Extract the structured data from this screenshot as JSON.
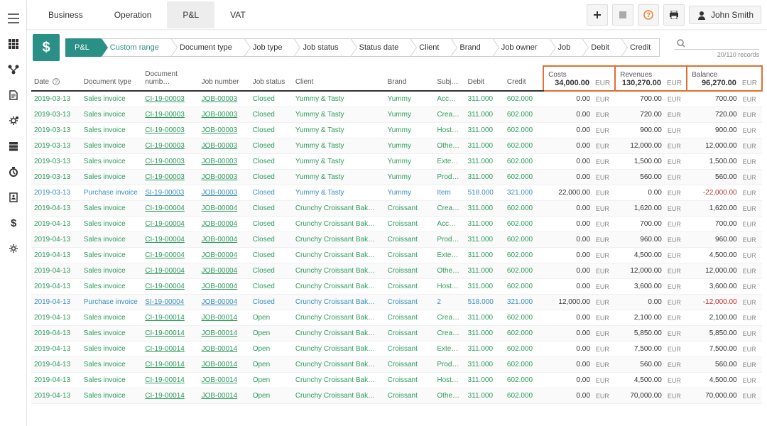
{
  "user": {
    "name": "John Smith"
  },
  "topTabs": [
    {
      "label": "Business",
      "active": false
    },
    {
      "label": "Operation",
      "active": false
    },
    {
      "label": "P&L",
      "active": true
    },
    {
      "label": "VAT",
      "active": false
    }
  ],
  "filterBadge": "$",
  "filterChips": [
    {
      "label": "P&L",
      "style": "active"
    },
    {
      "label": "Custom range",
      "style": "link"
    },
    {
      "label": "Document type"
    },
    {
      "label": "Job type"
    },
    {
      "label": "Job status"
    },
    {
      "label": "Status date"
    },
    {
      "label": "Client"
    },
    {
      "label": "Brand"
    },
    {
      "label": "Job owner"
    },
    {
      "label": "Job"
    },
    {
      "label": "Debit"
    },
    {
      "label": "Credit"
    }
  ],
  "searchMeta": "20/110 records",
  "summary": {
    "costs": {
      "label": "Costs",
      "value": "34,000.00",
      "currency": "EUR",
      "highlight": "#e07030"
    },
    "revenues": {
      "label": "Revenues",
      "value": "130,270.00",
      "currency": "EUR",
      "highlight": "#e07030"
    },
    "balance": {
      "label": "Balance",
      "value": "96,270.00",
      "currency": "EUR",
      "highlight": "#e07030"
    }
  },
  "columns": [
    "Date",
    "Document type",
    "Document numb…",
    "Job number",
    "Job status",
    "Client",
    "Brand",
    "Subj…",
    "Debit",
    "Credit"
  ],
  "currency": "EUR",
  "rows": [
    {
      "type": "sales",
      "date": "2019-03-13",
      "docType": "Sales invoice",
      "docNum": "CI-19-00003",
      "jobNum": "JOB-00003",
      "jobStatus": "Closed",
      "client": "Yummy & Tasty",
      "brand": "Yummy",
      "subj": "Acc…",
      "debit": "311.000",
      "credit": "602.000",
      "cost": "0.00",
      "rev": "700.00",
      "bal": "700.00"
    },
    {
      "type": "sales",
      "date": "2019-03-13",
      "docType": "Sales invoice",
      "docNum": "CI-19-00003",
      "jobNum": "JOB-00003",
      "jobStatus": "Closed",
      "client": "Yummy & Tasty",
      "brand": "Yummy",
      "subj": "Crea…",
      "debit": "311.000",
      "credit": "602.000",
      "cost": "0.00",
      "rev": "720.00",
      "bal": "720.00"
    },
    {
      "type": "sales",
      "date": "2019-03-13",
      "docType": "Sales invoice",
      "docNum": "CI-19-00003",
      "jobNum": "JOB-00003",
      "jobStatus": "Closed",
      "client": "Yummy & Tasty",
      "brand": "Yummy",
      "subj": "Host…",
      "debit": "311.000",
      "credit": "602.000",
      "cost": "0.00",
      "rev": "900.00",
      "bal": "900.00"
    },
    {
      "type": "sales",
      "date": "2019-03-13",
      "docType": "Sales invoice",
      "docNum": "CI-19-00003",
      "jobNum": "JOB-00003",
      "jobStatus": "Closed",
      "client": "Yummy & Tasty",
      "brand": "Yummy",
      "subj": "Othe…",
      "debit": "311.000",
      "credit": "602.000",
      "cost": "0.00",
      "rev": "12,000.00",
      "bal": "12,000.00"
    },
    {
      "type": "sales",
      "date": "2019-03-13",
      "docType": "Sales invoice",
      "docNum": "CI-19-00003",
      "jobNum": "JOB-00003",
      "jobStatus": "Closed",
      "client": "Yummy & Tasty",
      "brand": "Yummy",
      "subj": "Exte…",
      "debit": "311.000",
      "credit": "602.000",
      "cost": "0.00",
      "rev": "1,500.00",
      "bal": "1,500.00"
    },
    {
      "type": "sales",
      "date": "2019-03-13",
      "docType": "Sales invoice",
      "docNum": "CI-19-00003",
      "jobNum": "JOB-00003",
      "jobStatus": "Closed",
      "client": "Yummy & Tasty",
      "brand": "Yummy",
      "subj": "Prod…",
      "debit": "311.000",
      "credit": "602.000",
      "cost": "0.00",
      "rev": "560.00",
      "bal": "560.00"
    },
    {
      "type": "purchase",
      "date": "2019-03-13",
      "docType": "Purchase invoice",
      "docNum": "SI-19-00003",
      "jobNum": "JOB-00003",
      "jobStatus": "Closed",
      "client": "Yummy & Tasty",
      "brand": "Yummy",
      "subj": "Item",
      "debit": "518.000",
      "credit": "321.000",
      "cost": "22,000.00",
      "rev": "0.00",
      "bal": "-22,000.00",
      "neg": true
    },
    {
      "type": "sales",
      "date": "2019-04-13",
      "docType": "Sales invoice",
      "docNum": "CI-19-00004",
      "jobNum": "JOB-00004",
      "jobStatus": "Closed",
      "client": "Crunchy Croissant Bak…",
      "brand": "Croissant",
      "subj": "Crea…",
      "debit": "311.000",
      "credit": "602.000",
      "cost": "0.00",
      "rev": "1,620.00",
      "bal": "1,620.00"
    },
    {
      "type": "sales",
      "date": "2019-04-13",
      "docType": "Sales invoice",
      "docNum": "CI-19-00004",
      "jobNum": "JOB-00004",
      "jobStatus": "Closed",
      "client": "Crunchy Croissant Bak…",
      "brand": "Croissant",
      "subj": "Acc…",
      "debit": "311.000",
      "credit": "602.000",
      "cost": "0.00",
      "rev": "700.00",
      "bal": "700.00"
    },
    {
      "type": "sales",
      "date": "2019-04-13",
      "docType": "Sales invoice",
      "docNum": "CI-19-00004",
      "jobNum": "JOB-00004",
      "jobStatus": "Closed",
      "client": "Crunchy Croissant Bak…",
      "brand": "Croissant",
      "subj": "Prod…",
      "debit": "311.000",
      "credit": "602.000",
      "cost": "0.00",
      "rev": "960.00",
      "bal": "960.00"
    },
    {
      "type": "sales",
      "date": "2019-04-13",
      "docType": "Sales invoice",
      "docNum": "CI-19-00004",
      "jobNum": "JOB-00004",
      "jobStatus": "Closed",
      "client": "Crunchy Croissant Bak…",
      "brand": "Croissant",
      "subj": "Exte…",
      "debit": "311.000",
      "credit": "602.000",
      "cost": "0.00",
      "rev": "4,500.00",
      "bal": "4,500.00"
    },
    {
      "type": "sales",
      "date": "2019-04-13",
      "docType": "Sales invoice",
      "docNum": "CI-19-00004",
      "jobNum": "JOB-00004",
      "jobStatus": "Closed",
      "client": "Crunchy Croissant Bak…",
      "brand": "Croissant",
      "subj": "Othe…",
      "debit": "311.000",
      "credit": "602.000",
      "cost": "0.00",
      "rev": "12,000.00",
      "bal": "12,000.00"
    },
    {
      "type": "sales",
      "date": "2019-04-13",
      "docType": "Sales invoice",
      "docNum": "CI-19-00004",
      "jobNum": "JOB-00004",
      "jobStatus": "Closed",
      "client": "Crunchy Croissant Bak…",
      "brand": "Croissant",
      "subj": "Host…",
      "debit": "311.000",
      "credit": "602.000",
      "cost": "0.00",
      "rev": "3,600.00",
      "bal": "3,600.00"
    },
    {
      "type": "purchase",
      "date": "2019-04-13",
      "docType": "Purchase invoice",
      "docNum": "SI-19-00004",
      "jobNum": "JOB-00004",
      "jobStatus": "Closed",
      "client": "Crunchy Croissant Bak…",
      "brand": "Croissant",
      "subj": "2",
      "debit": "518.000",
      "credit": "321.000",
      "cost": "12,000.00",
      "rev": "0.00",
      "bal": "-12,000.00",
      "neg": true
    },
    {
      "type": "sales",
      "date": "2019-04-13",
      "docType": "Sales invoice",
      "docNum": "CI-19-00014",
      "jobNum": "JOB-00014",
      "jobStatus": "Open",
      "client": "Crunchy Croissant Bak…",
      "brand": "Croissant",
      "subj": "Crea…",
      "debit": "311.000",
      "credit": "602.000",
      "cost": "0.00",
      "rev": "2,100.00",
      "bal": "2,100.00"
    },
    {
      "type": "sales",
      "date": "2019-04-13",
      "docType": "Sales invoice",
      "docNum": "CI-19-00014",
      "jobNum": "JOB-00014",
      "jobStatus": "Open",
      "client": "Crunchy Croissant Bak…",
      "brand": "Croissant",
      "subj": "Crea…",
      "debit": "311.000",
      "credit": "602.000",
      "cost": "0.00",
      "rev": "5,850.00",
      "bal": "5,850.00"
    },
    {
      "type": "sales",
      "date": "2019-04-13",
      "docType": "Sales invoice",
      "docNum": "CI-19-00014",
      "jobNum": "JOB-00014",
      "jobStatus": "Open",
      "client": "Crunchy Croissant Bak…",
      "brand": "Croissant",
      "subj": "Exte…",
      "debit": "311.000",
      "credit": "602.000",
      "cost": "0.00",
      "rev": "7,500.00",
      "bal": "7,500.00"
    },
    {
      "type": "sales",
      "date": "2019-04-13",
      "docType": "Sales invoice",
      "docNum": "CI-19-00014",
      "jobNum": "JOB-00014",
      "jobStatus": "Open",
      "client": "Crunchy Croissant Bak…",
      "brand": "Croissant",
      "subj": "Prod…",
      "debit": "311.000",
      "credit": "602.000",
      "cost": "0.00",
      "rev": "560.00",
      "bal": "560.00"
    },
    {
      "type": "sales",
      "date": "2019-04-13",
      "docType": "Sales invoice",
      "docNum": "CI-19-00014",
      "jobNum": "JOB-00014",
      "jobStatus": "Open",
      "client": "Crunchy Croissant Bak…",
      "brand": "Croissant",
      "subj": "Host…",
      "debit": "311.000",
      "credit": "602.000",
      "cost": "0.00",
      "rev": "4,500.00",
      "bal": "4,500.00"
    },
    {
      "type": "sales",
      "date": "2019-04-13",
      "docType": "Sales invoice",
      "docNum": "CI-19-00014",
      "jobNum": "JOB-00014",
      "jobStatus": "Open",
      "client": "Crunchy Croissant Bak…",
      "brand": "Croissant",
      "subj": "Othe…",
      "debit": "311.000",
      "credit": "602.000",
      "cost": "0.00",
      "rev": "70,000.00",
      "bal": "70,000.00"
    }
  ],
  "colors": {
    "teal": "#2a8f85",
    "green": "#2a9d5a",
    "blue": "#3a8fc0",
    "red": "#c03030",
    "highlight": "#e07030"
  }
}
